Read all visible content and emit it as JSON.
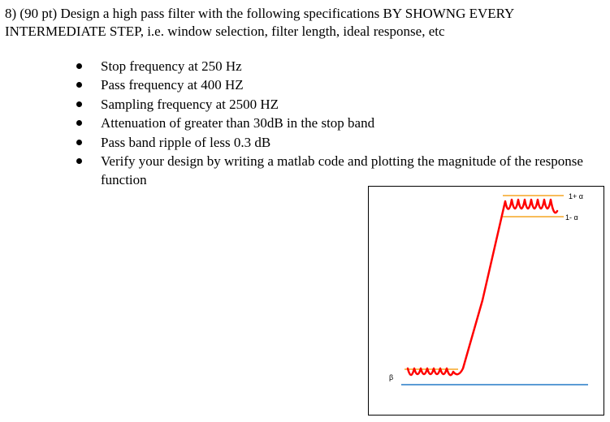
{
  "question": {
    "text": "8) (90 pt) Design a high pass filter with the following specifications BY SHOWNG EVERY INTERMEDIATE STEP, i.e. window selection, filter length, ideal response, etc"
  },
  "specs": [
    "Stop frequency at 250 Hz",
    "Pass frequency at 400 HZ",
    "Sampling frequency at 2500 HZ",
    "Attenuation of greater than 30dB in the stop band",
    "Pass band ripple of less  0.3 dB",
    "Verify your design by writing a matlab code and plotting the magnitude of the response function"
  ],
  "figure": {
    "upper_label": "1+ α",
    "lower_label": "1- α",
    "beta_label": "β",
    "colors": {
      "response": "#ff0000",
      "tolerance": "#f5a623",
      "baseline": "#5b9bd5",
      "border": "#000000"
    }
  }
}
